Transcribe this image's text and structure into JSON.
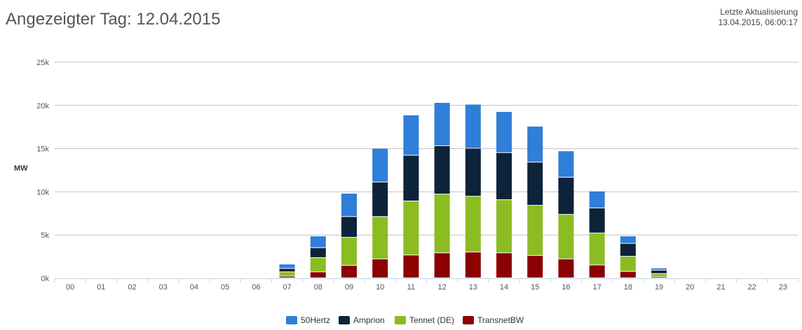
{
  "header": {
    "title": "Angezeigter Tag: 12.04.2015",
    "update_label": "Letzte Aktualisierung",
    "update_time": "13.04.2015, 06:00:17"
  },
  "chart_data": {
    "type": "bar",
    "stacked": true,
    "title": "",
    "xlabel": "",
    "ylabel": "MW",
    "ylim": [
      0,
      25000
    ],
    "yticks": [
      0,
      5000,
      10000,
      15000,
      20000,
      25000
    ],
    "ytick_labels": [
      "0k",
      "5k",
      "10k",
      "15k",
      "20k",
      "25k"
    ],
    "categories": [
      "00",
      "01",
      "02",
      "03",
      "04",
      "05",
      "06",
      "07",
      "08",
      "09",
      "10",
      "11",
      "12",
      "13",
      "14",
      "15",
      "16",
      "17",
      "18",
      "19",
      "20",
      "21",
      "22",
      "23"
    ],
    "grid": true,
    "legend_position": "bottom",
    "series": [
      {
        "name": "TransnetBW",
        "color": "#8b0000",
        "values": [
          0,
          0,
          0,
          0,
          0,
          0,
          0,
          200,
          700,
          1450,
          2200,
          2650,
          2900,
          3000,
          2900,
          2600,
          2200,
          1500,
          750,
          150,
          0,
          0,
          0,
          0
        ]
      },
      {
        "name": "Tennet (DE)",
        "color": "#8bbc21",
        "values": [
          0,
          0,
          0,
          0,
          0,
          0,
          0,
          500,
          1650,
          3250,
          4900,
          6250,
          6800,
          6450,
          6150,
          5800,
          5150,
          3700,
          1750,
          350,
          0,
          0,
          0,
          0
        ]
      },
      {
        "name": "Amprion",
        "color": "#0d233a",
        "values": [
          0,
          0,
          0,
          0,
          0,
          0,
          0,
          400,
          1150,
          2400,
          4000,
          5300,
          5600,
          5550,
          5450,
          5000,
          4300,
          2900,
          1500,
          400,
          0,
          0,
          0,
          0
        ]
      },
      {
        "name": "50Hertz",
        "color": "#2f7ed8",
        "values": [
          0,
          0,
          0,
          0,
          0,
          0,
          0,
          500,
          1350,
          2700,
          3900,
          4650,
          5000,
          5100,
          4750,
          4150,
          3050,
          1950,
          850,
          250,
          0,
          0,
          0,
          0
        ]
      }
    ],
    "legend_order": [
      "50Hertz",
      "Amprion",
      "Tennet (DE)",
      "TransnetBW"
    ]
  }
}
